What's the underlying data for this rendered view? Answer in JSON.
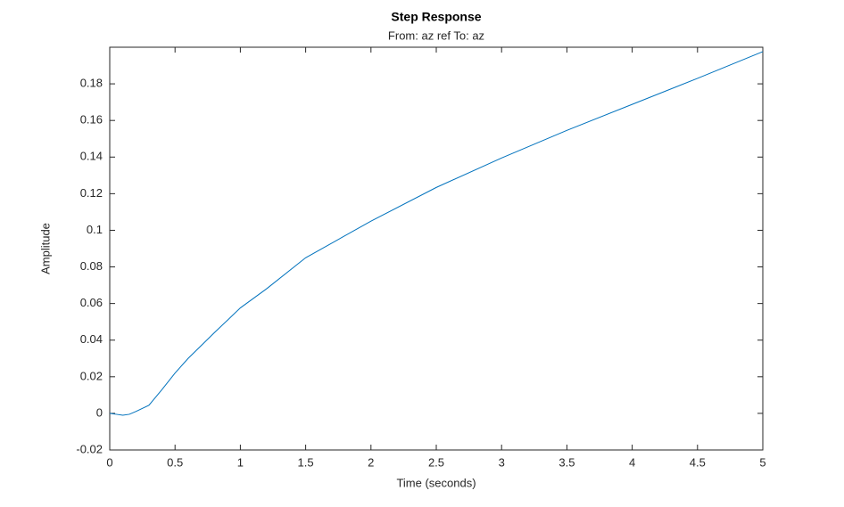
{
  "chart_data": {
    "type": "line",
    "title": "Step Response",
    "subtitle": "From: az ref  To: az",
    "x_label": "Time (seconds)",
    "y_label": "Amplitude",
    "x": [
      0,
      0.05,
      0.1,
      0.15,
      0.2,
      0.3,
      0.4,
      0.5,
      0.6,
      0.7,
      0.8,
      1,
      1.2,
      1.5,
      2,
      2.5,
      3,
      3.5,
      4,
      4.5,
      5
    ],
    "series": [
      {
        "color": "#0072bd",
        "values": [
          0,
          -0.0005,
          -0.001,
          -0.0005,
          0.001,
          0.0044,
          0.013,
          0.022,
          0.03,
          0.037,
          0.044,
          0.0576,
          0.068,
          0.085,
          0.105,
          0.1234,
          0.1395,
          0.1546,
          0.1688,
          0.183,
          0.1976
        ]
      }
    ],
    "xlim": [
      0,
      5
    ],
    "ylim": [
      -0.02,
      0.2
    ],
    "xticks": [
      0,
      0.5,
      1,
      1.5,
      2,
      2.5,
      3,
      3.5,
      4,
      4.5,
      5
    ],
    "yticks": [
      -0.02,
      0,
      0.02,
      0.04,
      0.06,
      0.08,
      0.1,
      0.12,
      0.14,
      0.16,
      0.18
    ],
    "grid": false
  }
}
